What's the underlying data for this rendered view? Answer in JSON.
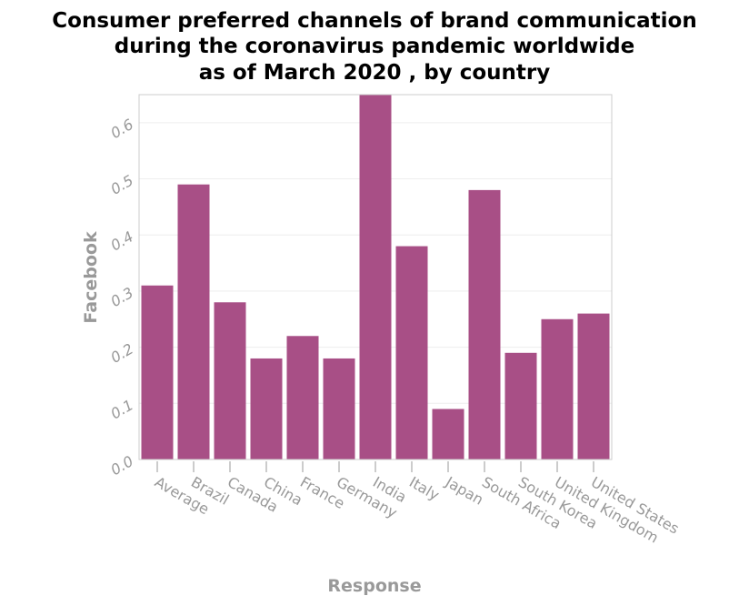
{
  "chart_data": {
    "type": "bar",
    "title": [
      "Consumer preferred channels of brand communication",
      "during the coronavirus pandemic worldwide",
      "as of March 2020 , by country"
    ],
    "xlabel": "Response",
    "ylabel": "Facebook",
    "categories": [
      "Average",
      "Brazil",
      "Canada",
      "China",
      "France",
      "Germany",
      "India",
      "Italy",
      "Japan",
      "South Africa",
      "South Korea",
      "United Kingdom",
      "United States"
    ],
    "values": [
      0.31,
      0.49,
      0.28,
      0.18,
      0.22,
      0.18,
      0.65,
      0.38,
      0.09,
      0.48,
      0.19,
      0.25,
      0.26
    ],
    "ylim": [
      0,
      0.65
    ],
    "yticks": [
      "0.0",
      "0.1",
      "0.2",
      "0.3",
      "0.4",
      "0.5",
      "0.6"
    ],
    "grid": true,
    "bar_color": "#a84f86",
    "grid_color": "#eeeeee",
    "axis_color": "#cccccc"
  }
}
